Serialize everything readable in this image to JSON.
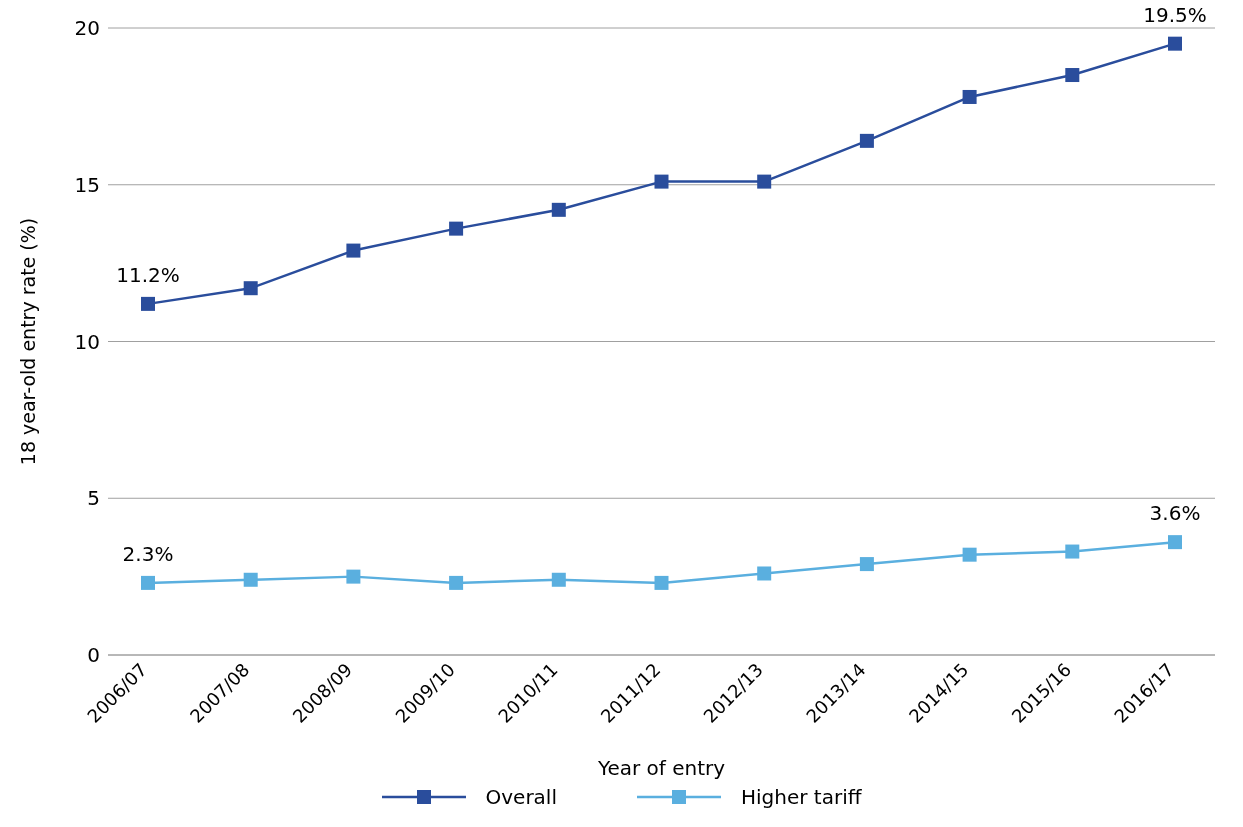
{
  "chart_data": {
    "type": "line",
    "xlabel": "Year of entry",
    "ylabel": "18 year-old entry rate (%)",
    "categories": [
      "2006/07",
      "2007/08",
      "2008/09",
      "2009/10",
      "2010/11",
      "2011/12",
      "2012/13",
      "2013/14",
      "2014/15",
      "2015/16",
      "2016/17"
    ],
    "series": [
      {
        "name": "Overall",
        "color": "#2a4d9c",
        "values": [
          11.2,
          11.7,
          12.9,
          13.6,
          14.2,
          15.1,
          15.1,
          16.4,
          17.8,
          18.5,
          19.5
        ],
        "value_labels": [
          "11.2%",
          null,
          null,
          null,
          null,
          null,
          null,
          null,
          null,
          null,
          "19.5%"
        ]
      },
      {
        "name": "Higher tariff",
        "color": "#5aafdf",
        "values": [
          2.3,
          2.4,
          2.5,
          2.3,
          2.4,
          2.3,
          2.6,
          2.9,
          3.2,
          3.3,
          3.6
        ],
        "value_labels": [
          "2.3%",
          null,
          null,
          null,
          null,
          null,
          null,
          null,
          null,
          null,
          "3.6%"
        ]
      }
    ],
    "ylim": [
      0,
      20
    ],
    "yticks": [
      0,
      5,
      10,
      15,
      20
    ],
    "grid": "y",
    "legend": "bottom",
    "marker": "square",
    "line_style": "solid"
  }
}
